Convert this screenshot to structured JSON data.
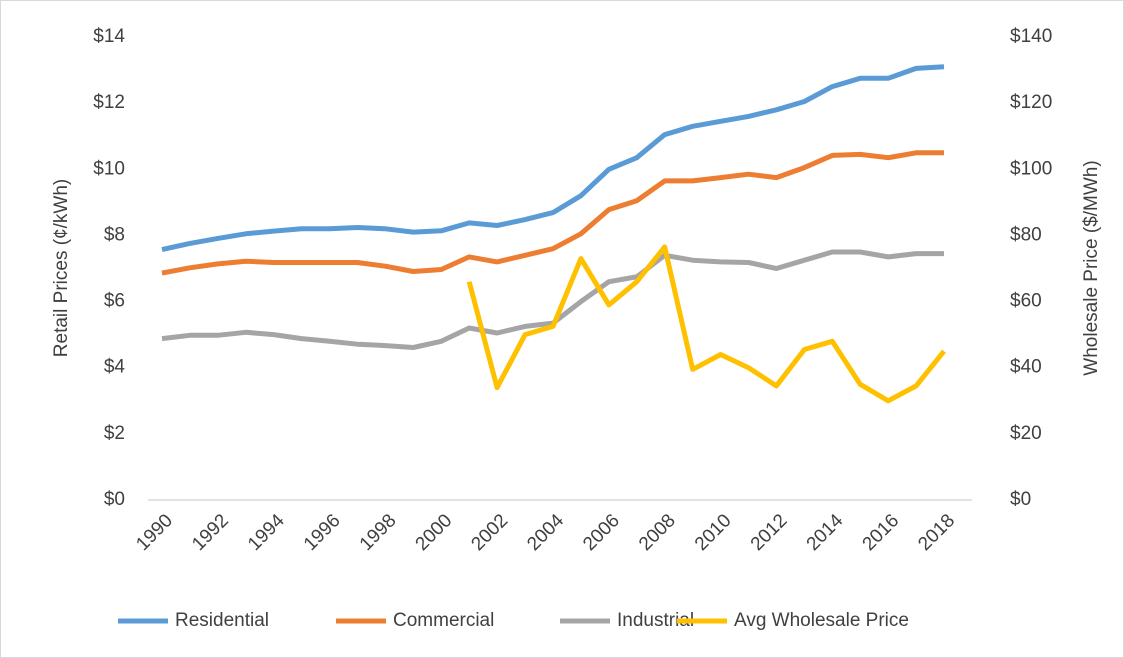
{
  "chart_data": {
    "type": "line",
    "y_label": "Retail Prices (¢/kWh)",
    "y2_label": "Wholesale Price ($/MWh)",
    "categories": [
      "1990",
      null,
      "1992",
      null,
      "1994",
      null,
      "1996",
      null,
      "1998",
      null,
      "2000",
      null,
      "2002",
      null,
      "2004",
      null,
      "2006",
      null,
      "2008",
      null,
      "2010",
      null,
      "2012",
      null,
      "2014",
      null,
      "2016",
      null,
      "2018"
    ],
    "series": [
      {
        "name": "Residential",
        "color": "#5b9bd5",
        "values": [
          7.57,
          7.76,
          7.91,
          8.05,
          8.13,
          8.2,
          8.2,
          8.24,
          8.2,
          8.1,
          8.14,
          8.38,
          8.3,
          8.48,
          8.69,
          9.2,
          10.0,
          10.35,
          11.05,
          11.3,
          11.45,
          11.6,
          11.8,
          12.05,
          12.5,
          12.75,
          12.75,
          13.05,
          13.1
        ]
      },
      {
        "name": "Commercial",
        "color": "#ed7d31",
        "values": [
          6.86,
          7.02,
          7.14,
          7.22,
          7.18,
          7.18,
          7.18,
          7.18,
          7.07,
          6.91,
          6.97,
          7.35,
          7.2,
          7.4,
          7.6,
          8.05,
          8.78,
          9.05,
          9.65,
          9.65,
          9.75,
          9.85,
          9.75,
          10.05,
          10.42,
          10.45,
          10.35,
          10.5,
          10.5
        ]
      },
      {
        "name": "Industrial",
        "color": "#a5a5a5",
        "values": [
          4.88,
          4.98,
          4.98,
          5.07,
          5.0,
          4.88,
          4.8,
          4.71,
          4.67,
          4.61,
          4.8,
          5.2,
          5.05,
          5.25,
          5.35,
          6.0,
          6.6,
          6.75,
          7.4,
          7.25,
          7.2,
          7.18,
          7.0,
          7.25,
          7.5,
          7.5,
          7.35,
          7.45,
          7.45
        ]
      },
      {
        "name": "Avg Wholesale Price",
        "color": "#ffc000",
        "axis": "y2",
        "values": [
          null,
          null,
          null,
          null,
          null,
          null,
          null,
          null,
          null,
          null,
          null,
          66,
          34,
          50,
          52.5,
          73,
          59,
          66,
          76.5,
          39.5,
          44,
          40,
          34.5,
          45.5,
          48,
          35,
          30,
          34.5,
          45
        ]
      }
    ],
    "ylim": [
      0,
      14
    ],
    "yticks": [
      {
        "value": 0,
        "label": "$0"
      },
      {
        "value": 2,
        "label": "$2"
      },
      {
        "value": 4,
        "label": "$4"
      },
      {
        "value": 6,
        "label": "$6"
      },
      {
        "value": 8,
        "label": "$8"
      },
      {
        "value": 10,
        "label": "$10"
      },
      {
        "value": 12,
        "label": "$12"
      },
      {
        "value": 14,
        "label": "$14"
      }
    ],
    "y2lim": [
      0,
      140
    ],
    "y2ticks": [
      {
        "value": 0,
        "label": "$0"
      },
      {
        "value": 20,
        "label": "$20"
      },
      {
        "value": 40,
        "label": "$40"
      },
      {
        "value": 60,
        "label": "$60"
      },
      {
        "value": 80,
        "label": "$80"
      },
      {
        "value": 100,
        "label": "$100"
      },
      {
        "value": 120,
        "label": "$120"
      },
      {
        "value": 140,
        "label": "$140"
      }
    ],
    "grid": false,
    "legend": "bottom"
  }
}
